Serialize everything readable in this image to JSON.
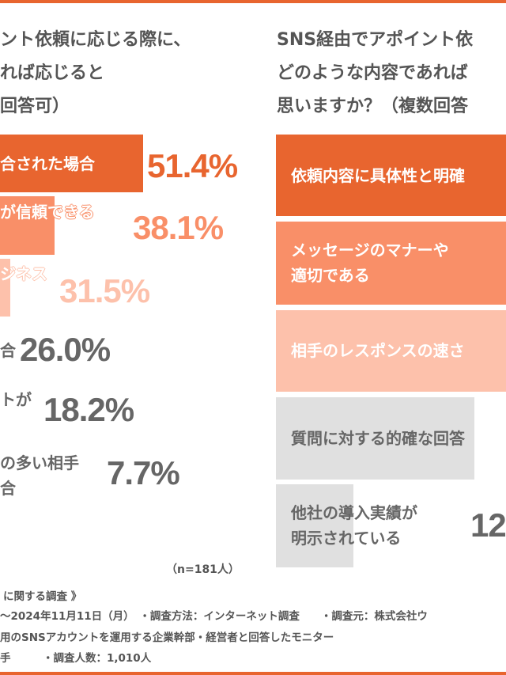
{
  "colors": {
    "accent": "#e8652f",
    "mid": "#f98f68",
    "light": "#fdc1ab",
    "gray_bar": "#e0e0e0",
    "gray_text": "#666666"
  },
  "left_panel": {
    "title_lines": [
      "ント依頼に応じる際に、",
      "れば応じると",
      "回答可）"
    ],
    "note": "（n=181人）"
  },
  "right_panel": {
    "title_lines": [
      "SNS経由でアポイント依",
      "どのような内容であれば",
      "思いますか？（複数回答"
    ]
  },
  "chart_data": [
    {
      "type": "bar",
      "orientation": "horizontal",
      "title": "ント依頼に応じる際に、れば応じると回答可）",
      "categories": [
        "合された場合",
        "が信頼できる",
        "ジネス",
        "合",
        "トが",
        "の多い相手 合"
      ],
      "category_lines": [
        [
          "合された場合"
        ],
        [
          "が信頼できる"
        ],
        [
          "ジネス"
        ],
        [
          "合"
        ],
        [
          "トが"
        ],
        [
          "の多い相手",
          "合"
        ]
      ],
      "values": [
        51.4,
        38.1,
        31.5,
        26.0,
        18.2,
        7.7
      ],
      "labels": [
        "51.4%",
        "38.1%",
        "31.5%",
        "26.0%",
        "18.2%",
        "7.7%"
      ],
      "unit": "%",
      "n": "n=181人"
    },
    {
      "type": "bar",
      "orientation": "horizontal",
      "title": "SNS経由でアポイント依どのような内容であれば思いますか？（複数回答",
      "categories": [
        "依頼内容に具体性と明確",
        "メッセージのマナーや 適切である",
        "相手のレスポンスの速さ",
        "質問に対する的確な回答",
        "他社の導入実績が 明示されている"
      ],
      "category_lines": [
        [
          "依頼内容に具体性と明確"
        ],
        [
          "メッセージのマナーや",
          "適切である"
        ],
        [
          "相手のレスポンスの速さ"
        ],
        [
          "質問に対する的確な回答"
        ],
        [
          "他社の導入実績が",
          "明示されている"
        ]
      ],
      "labels": [
        "",
        "",
        "",
        "",
        "12."
      ],
      "unit": "%"
    }
  ],
  "footer": {
    "lines": [
      "に関する調査 》",
      "〜2024年11月11日（月）　・調査方法：インターネット調査　　・調査元：株式会社ウ",
      "用のSNSアカウントを運用する企業幹部・経営者と回答したモニター",
      "手　　　・調査人数：1,010人"
    ]
  }
}
